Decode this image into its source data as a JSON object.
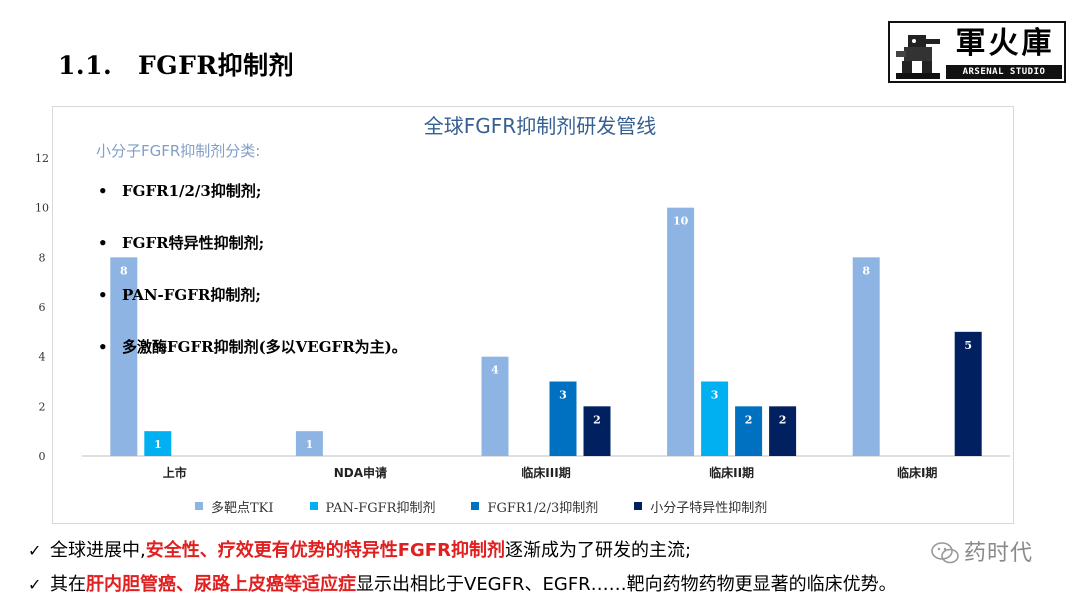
{
  "heading": {
    "number": "1.1.",
    "title": "FGFR抑制剂"
  },
  "logo": {
    "cn": "軍火庫",
    "en": "ARSENAL STUDIO"
  },
  "classification": {
    "title": "小分子FGFR抑制剂分类:",
    "bullet": "•",
    "items": [
      "FGFR1/2/3抑制剂;",
      "FGFR特异性抑制剂;",
      "PAN-FGFR抑制剂;",
      "多激酶FGFR抑制剂(多以VEGFR为主)。"
    ]
  },
  "chart_data": {
    "type": "bar",
    "title": "全球FGFR抑制剂研发管线",
    "categories": [
      "上市",
      "NDA申请",
      "临床III期",
      "临床II期",
      "临床I期"
    ],
    "series": [
      {
        "name": "多靶点TKI",
        "color": "#8eb4e3",
        "values": [
          8,
          1,
          4,
          10,
          8
        ]
      },
      {
        "name": "PAN-FGFR抑制剂",
        "color": "#00b0f0",
        "values": [
          1,
          0,
          0,
          3,
          0
        ]
      },
      {
        "name": "FGFR1/2/3抑制剂",
        "color": "#0070c0",
        "values": [
          0,
          0,
          3,
          2,
          0
        ]
      },
      {
        "name": "小分子特异性抑制剂",
        "color": "#002060",
        "values": [
          0,
          0,
          2,
          2,
          5
        ]
      }
    ],
    "yticks": [
      0,
      2,
      4,
      6,
      8,
      10,
      12
    ],
    "ylim": [
      0,
      12
    ],
    "xlabel": "",
    "ylabel": "",
    "legend_position": "bottom"
  },
  "bullets": {
    "check": "✓",
    "line1": {
      "pre": "全球进展中,",
      "highlight": "安全性、疗效更有优势的特异性FGFR抑制剂",
      "post": "逐渐成为了研发的主流;"
    },
    "line2": {
      "pre": "其在",
      "highlight": "肝内胆管癌、尿路上皮癌等适应症",
      "post": "显示出相比于VEGFR、EGFR……靶向药物药物更显著的临床优势。"
    }
  },
  "watermark": {
    "name": "药时代"
  }
}
